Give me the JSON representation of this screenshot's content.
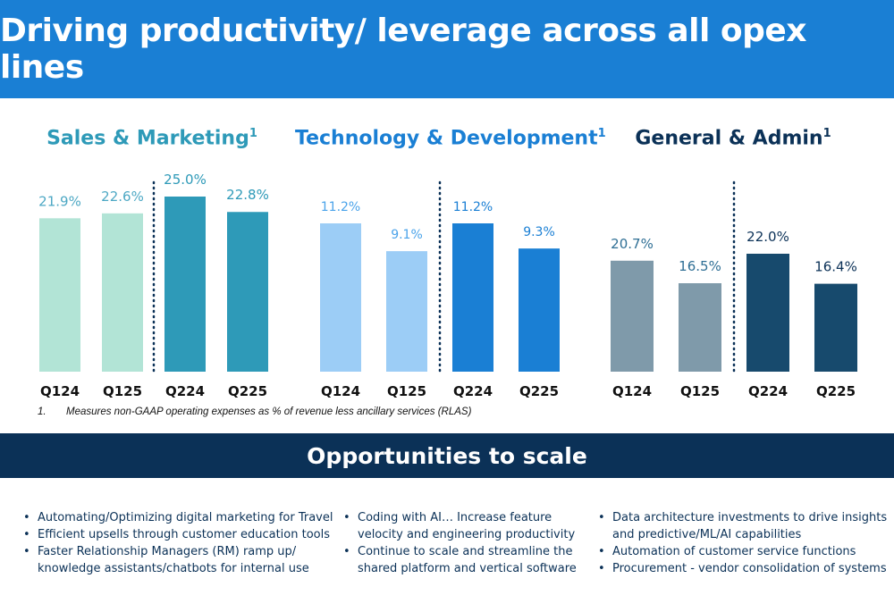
{
  "header": {
    "title": "Driving productivity/ leverage across all opex lines"
  },
  "colors": {
    "banner_blue": "#1a7fd4",
    "banner_navy": "#0b3157",
    "sm_light": "#b2e4d6",
    "sm_dark": "#2e9ab8",
    "td_light": "#9ccdf6",
    "td_dark": "#1a7fd4",
    "ga_light": "#7f9aaa",
    "ga_dark": "#174a6d"
  },
  "chart_data": [
    {
      "type": "bar",
      "title": "Sales & Marketing",
      "footnote_ref": "1",
      "categories": [
        "Q124",
        "Q125",
        "Q224",
        "Q225"
      ],
      "values": [
        21.9,
        22.6,
        25.0,
        22.8
      ],
      "labels": [
        "21.9%",
        "22.6%",
        "25.0%",
        "22.8%"
      ],
      "ylim": [
        0,
        25
      ],
      "title_color": "#2e9ab8",
      "bar_colors": [
        "#b2e4d6",
        "#b2e4d6",
        "#2e9ab8",
        "#2e9ab8"
      ]
    },
    {
      "type": "bar",
      "title": "Technology & Development",
      "footnote_ref": "1",
      "categories": [
        "Q124",
        "Q125",
        "Q224",
        "Q225"
      ],
      "values": [
        11.2,
        9.1,
        11.2,
        9.3
      ],
      "labels": [
        "11.2%",
        "9.1%",
        "11.2%",
        "9.3%"
      ],
      "ylim": [
        0,
        11.2
      ],
      "title_color": "#1a7fd4",
      "bar_colors": [
        "#9ccdf6",
        "#9ccdf6",
        "#1a7fd4",
        "#1a7fd4"
      ]
    },
    {
      "type": "bar",
      "title": "General & Admin",
      "footnote_ref": "1",
      "categories": [
        "Q124",
        "Q125",
        "Q224",
        "Q225"
      ],
      "values": [
        20.7,
        16.5,
        22.0,
        16.4
      ],
      "labels": [
        "20.7%",
        "16.5%",
        "22.0%",
        "16.4%"
      ],
      "ylim": [
        0,
        22
      ],
      "title_color": "#0b3157",
      "bar_colors": [
        "#7f9aaa",
        "#7f9aaa",
        "#174a6d",
        "#174a6d"
      ]
    }
  ],
  "footnote": {
    "number": "1.",
    "text": "Measures non-GAAP operating expenses as % of revenue less ancillary services (RLAS)"
  },
  "section": {
    "title": "Opportunities to scale"
  },
  "bullets": {
    "col1": [
      "Automating/Optimizing digital marketing for Travel",
      "Efficient upsells through customer education tools",
      "Faster Relationship Managers (RM) ramp up/ knowledge assistants/chatbots for internal use"
    ],
    "col2": [
      "Coding with AI… Increase feature velocity and engineering productivity",
      "Continue to scale and streamline the shared platform and vertical software"
    ],
    "col3": [
      "Data architecture investments to drive insights and predictive/ML/AI capabilities",
      "Automation of customer service functions",
      "Procurement - vendor consolidation of systems"
    ]
  }
}
